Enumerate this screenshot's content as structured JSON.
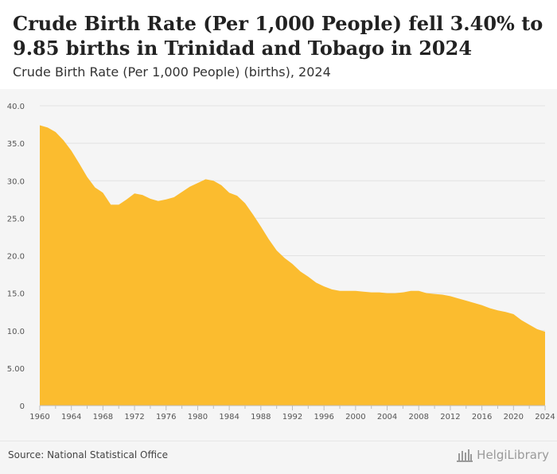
{
  "header": {
    "title": "Crude Birth Rate (Per 1,000 People) fell 3.40% to 9.85 births in Trinidad and Tobago in 2024",
    "subtitle": "Crude Birth Rate (Per 1,000 People) (births), 2024"
  },
  "footer": {
    "source": "Source: National Statistical Office",
    "logo_text": "HelgiLibrary"
  },
  "colors": {
    "fill": "#fbbc2f",
    "grid": "#e2e2e2",
    "axis_text": "#555555"
  },
  "chart_data": {
    "type": "area",
    "title": "Crude Birth Rate (Per 1,000 People) fell 3.40% to 9.85 births in Trinidad and Tobago in 2024",
    "ylabel": "",
    "xlabel": "",
    "ylim": [
      0,
      40
    ],
    "xlim": [
      1960,
      2024
    ],
    "grid": true,
    "yticks": [
      0,
      5,
      10,
      15,
      20,
      25,
      30,
      35,
      40
    ],
    "ytick_labels": [
      "0",
      "5.00",
      "10.0",
      "15.0",
      "20.0",
      "25.0",
      "30.0",
      "35.0",
      "40.0"
    ],
    "xticks": [
      1960,
      1964,
      1968,
      1972,
      1976,
      1980,
      1984,
      1988,
      1992,
      1996,
      2000,
      2004,
      2008,
      2012,
      2016,
      2020,
      2024
    ],
    "xtick_minor": [
      1962,
      1966,
      1970,
      1974,
      1978,
      1982,
      1986,
      1990,
      1994,
      1998,
      2002,
      2006,
      2010,
      2014,
      2018,
      2022
    ],
    "x": [
      1960,
      1961,
      1962,
      1963,
      1964,
      1965,
      1966,
      1967,
      1968,
      1969,
      1970,
      1971,
      1972,
      1973,
      1974,
      1975,
      1976,
      1977,
      1978,
      1979,
      1980,
      1981,
      1982,
      1983,
      1984,
      1985,
      1986,
      1987,
      1988,
      1989,
      1990,
      1991,
      1992,
      1993,
      1994,
      1995,
      1996,
      1997,
      1998,
      1999,
      2000,
      2001,
      2002,
      2003,
      2004,
      2005,
      2006,
      2007,
      2008,
      2009,
      2010,
      2011,
      2012,
      2013,
      2014,
      2015,
      2016,
      2017,
      2018,
      2019,
      2020,
      2021,
      2022,
      2023,
      2024
    ],
    "values": [
      37.4,
      37.1,
      36.5,
      35.4,
      34.0,
      32.3,
      30.5,
      29.1,
      28.4,
      26.8,
      26.8,
      27.5,
      28.3,
      28.1,
      27.6,
      27.3,
      27.5,
      27.8,
      28.5,
      29.2,
      29.7,
      30.2,
      30.0,
      29.4,
      28.4,
      28.0,
      27.0,
      25.5,
      23.9,
      22.2,
      20.7,
      19.7,
      18.9,
      17.9,
      17.2,
      16.4,
      15.9,
      15.5,
      15.3,
      15.3,
      15.3,
      15.2,
      15.1,
      15.1,
      15.0,
      15.0,
      15.1,
      15.3,
      15.3,
      15.0,
      14.9,
      14.8,
      14.6,
      14.3,
      14.0,
      13.7,
      13.4,
      13.0,
      12.7,
      12.5,
      12.2,
      11.4,
      10.8,
      10.2,
      9.85
    ]
  }
}
